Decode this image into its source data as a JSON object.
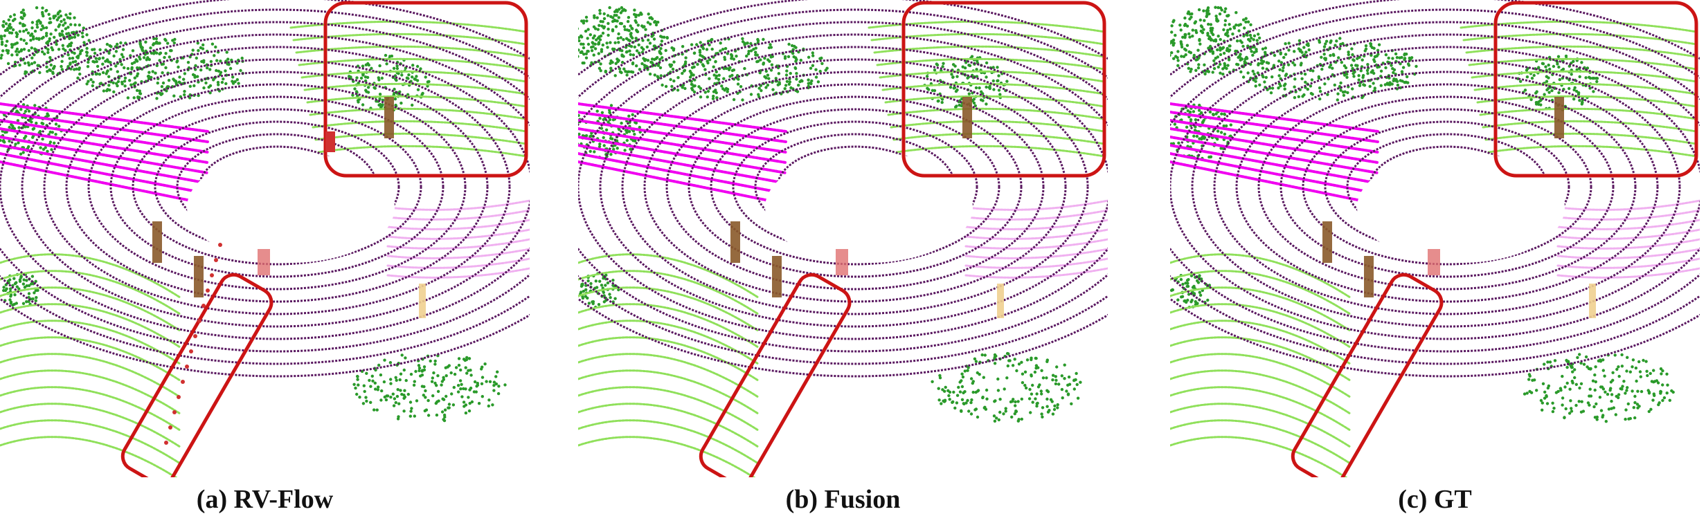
{
  "panels": [
    {
      "caption": "(a) RV-Flow"
    },
    {
      "caption": "(b) Fusion"
    },
    {
      "caption": "(c) GT"
    }
  ],
  "colors": {
    "road": "#5a1860",
    "sidewalk": "#f000f0",
    "terrain": "#8fe05a",
    "vegetation": "#2a9a2a",
    "trunk": "#8a5a2a",
    "pole": "#f0d090",
    "person": "#d03030",
    "highlight_box": "#cc1414"
  }
}
